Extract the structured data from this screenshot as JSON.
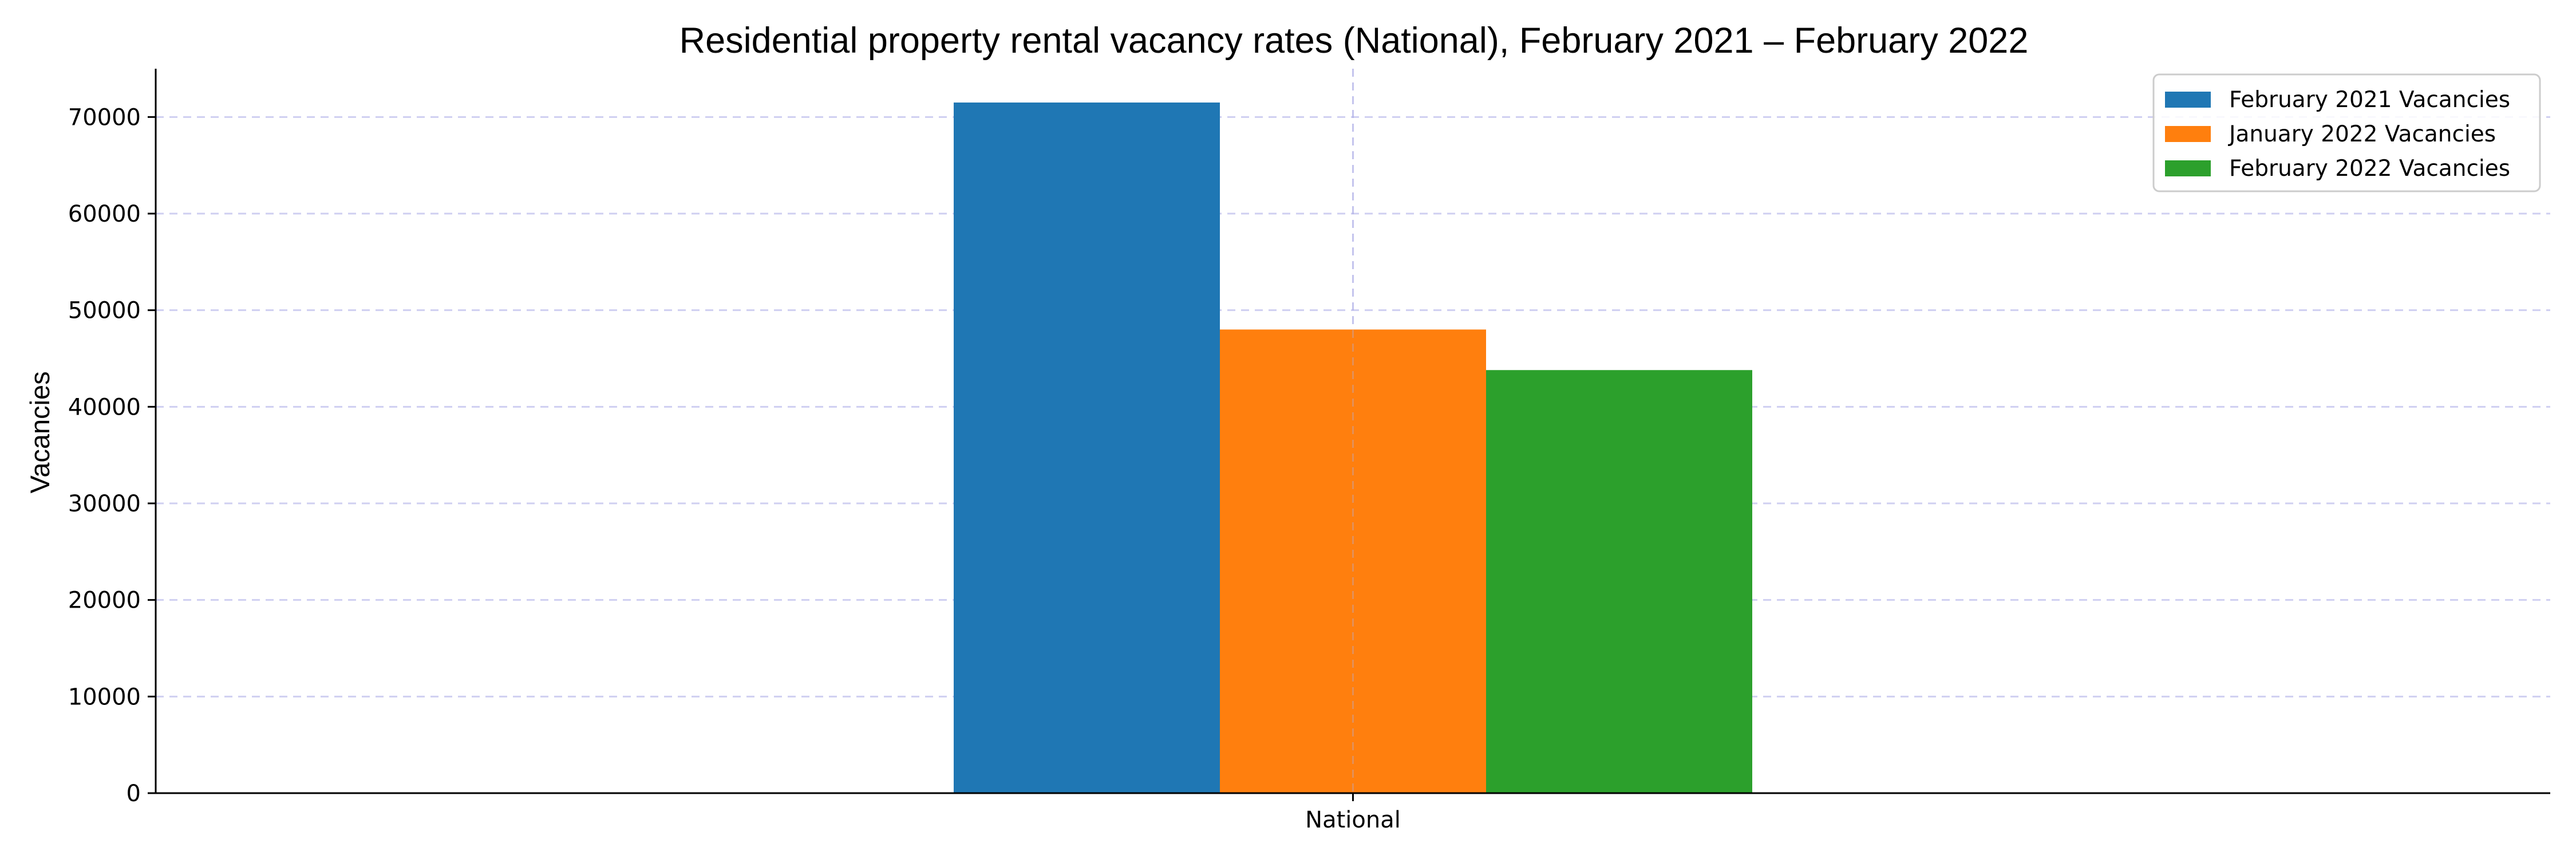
{
  "chart_data": {
    "type": "bar",
    "title": "Residential property rental vacancy rates (National), February 2021 – February 2022",
    "xlabel": "",
    "ylabel": "Vacancies",
    "categories": [
      "National"
    ],
    "series": [
      {
        "name": "February 2021 Vacancies",
        "values": [
          71500
        ],
        "color": "#1f77b4"
      },
      {
        "name": "January 2022 Vacancies",
        "values": [
          48000
        ],
        "color": "#ff7f0e"
      },
      {
        "name": "February 2022 Vacancies",
        "values": [
          43800
        ],
        "color": "#2ca02c"
      }
    ],
    "ylim": [
      0,
      75000
    ],
    "yticks": [
      "0",
      "10000",
      "20000",
      "30000",
      "40000",
      "50000",
      "60000",
      "70000"
    ],
    "grid": true,
    "legend_position": "top-right"
  }
}
